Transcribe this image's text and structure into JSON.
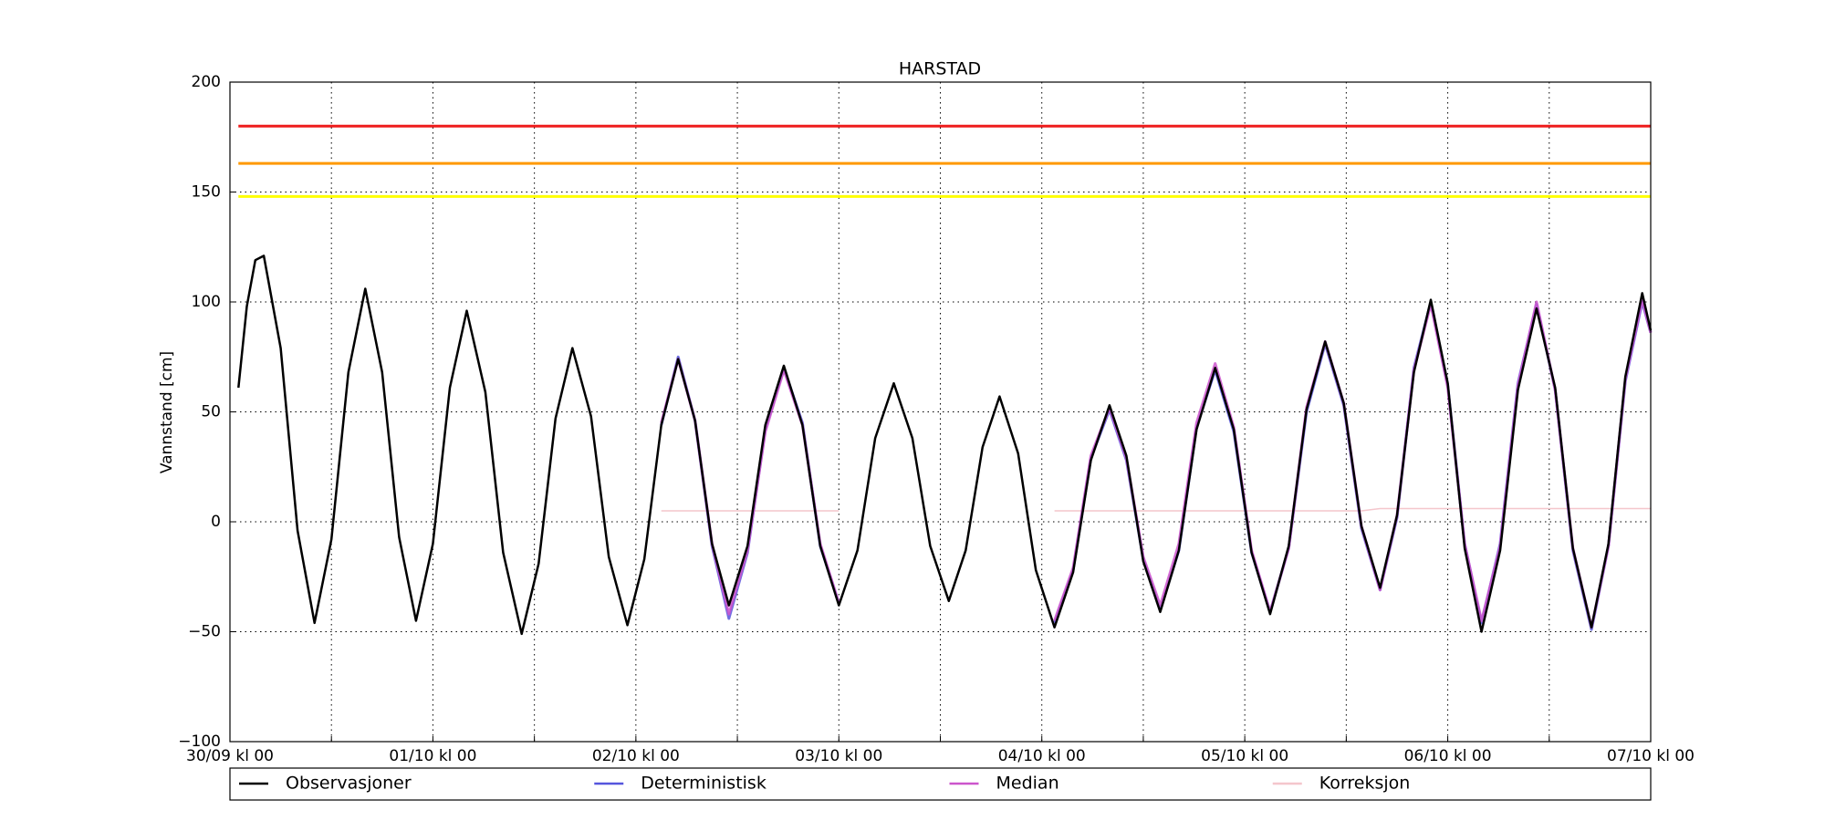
{
  "chart_data": {
    "type": "line",
    "title": "HARSTAD",
    "ylabel": "Vannstand [cm]",
    "x": [
      1,
      2,
      3,
      4,
      6,
      8,
      10,
      12,
      14,
      16,
      18,
      20,
      22,
      24,
      26,
      28,
      30.2,
      32.3,
      34.5,
      36.5,
      38.5,
      40.5,
      42.7,
      44.8,
      47,
      49,
      51,
      53,
      55,
      57,
      59,
      61.2,
      63.3,
      65.5,
      67.7,
      69.8,
      72,
      74.2,
      76.3,
      78.5,
      80.7,
      82.8,
      85,
      87,
      89,
      91,
      93.2,
      95.3,
      97.5,
      99.7,
      101.8,
      104,
      106,
      108,
      110,
      112.2,
      114.3,
      116.5,
      118.7,
      120.8,
      123,
      125.2,
      127.3,
      129.5,
      131.7,
      133.8,
      136,
      138,
      140,
      142,
      144,
      146,
      148,
      150.2,
      152.3,
      154.5,
      156.7,
      158.8,
      161,
      163,
      165,
      167,
      168
    ],
    "series": [
      {
        "name": "Korreksjon",
        "color": "#f4c6cc",
        "width": 1.5,
        "values": [
          null,
          null,
          null,
          null,
          null,
          null,
          null,
          null,
          null,
          null,
          null,
          null,
          null,
          null,
          null,
          null,
          null,
          null,
          null,
          null,
          null,
          null,
          null,
          null,
          null,
          null,
          5,
          5,
          5,
          5,
          5,
          5,
          5,
          5,
          5,
          5,
          5,
          null,
          null,
          null,
          null,
          null,
          null,
          null,
          null,
          null,
          null,
          null,
          5,
          5,
          5,
          5,
          5,
          5,
          5,
          5,
          5,
          5,
          5,
          5,
          5,
          5,
          5,
          5,
          5,
          5,
          6,
          6,
          6,
          6,
          6,
          6,
          6,
          6,
          6,
          6,
          6,
          6,
          6,
          6,
          6,
          6,
          6
        ]
      },
      {
        "name": "Deterministisk",
        "color": "#5555dd",
        "width": 3,
        "values": [
          null,
          null,
          null,
          null,
          null,
          null,
          null,
          null,
          null,
          null,
          null,
          null,
          null,
          null,
          null,
          null,
          null,
          null,
          null,
          null,
          null,
          null,
          null,
          null,
          null,
          null,
          44,
          75,
          46,
          -11,
          -44,
          -14,
          42,
          70,
          45,
          -11,
          -37,
          null,
          null,
          null,
          null,
          null,
          null,
          null,
          null,
          null,
          null,
          null,
          -46,
          -22,
          29,
          51,
          28,
          -17,
          -40,
          -13,
          43,
          69,
          41,
          -14,
          -41,
          -12,
          50,
          81,
          53,
          -3,
          -31,
          2,
          70,
          100,
          62,
          -10,
          -46,
          -10,
          63,
          99,
          60,
          -13,
          -49,
          -11,
          64,
          100,
          86
        ]
      },
      {
        "name": "Median",
        "color": "#cc55cc",
        "width": 3,
        "values": [
          null,
          null,
          null,
          null,
          null,
          null,
          null,
          null,
          null,
          null,
          null,
          null,
          null,
          null,
          null,
          null,
          null,
          null,
          null,
          null,
          null,
          null,
          null,
          null,
          null,
          null,
          45,
          74,
          46,
          -10,
          -42,
          -13,
          41,
          69,
          44,
          -10,
          -37,
          null,
          null,
          null,
          null,
          null,
          null,
          null,
          null,
          null,
          null,
          null,
          -45,
          -21,
          30,
          52,
          29,
          -16,
          -38,
          -10,
          45,
          72,
          43,
          -13,
          -41,
          -12,
          52,
          82,
          54,
          -2,
          -31,
          3,
          69,
          99,
          61,
          -10,
          -45,
          -11,
          62,
          100,
          60,
          -12,
          -48,
          -11,
          65,
          101,
          86
        ]
      },
      {
        "name": "Observasjoner",
        "color": "#000000",
        "width": 2.5,
        "values": [
          61,
          98,
          119,
          121,
          79,
          -4,
          -46,
          -8,
          68,
          106,
          68,
          -7,
          -45,
          -10,
          61,
          96,
          59,
          -14,
          -51,
          -19,
          47,
          79,
          48,
          -16,
          -47,
          -17,
          44,
          74,
          46,
          -10,
          -38,
          -11,
          44,
          71,
          44,
          -11,
          -38,
          -13,
          38,
          63,
          38,
          -11,
          -36,
          -13,
          34,
          57,
          31,
          -22,
          -48,
          -23,
          28,
          53,
          30,
          -18,
          -41,
          -13,
          42,
          70,
          42,
          -14,
          -42,
          -11,
          51,
          82,
          54,
          -2,
          -30,
          3,
          68,
          101,
          63,
          -12,
          -50,
          -13,
          60,
          97,
          61,
          -12,
          -48,
          -10,
          66,
          104,
          87
        ]
      }
    ],
    "legend_order": [
      3,
      1,
      2,
      0
    ],
    "thresholds": [
      {
        "value": 180,
        "color": "#ee1c1c"
      },
      {
        "value": 163,
        "color": "#ff9900"
      },
      {
        "value": 148,
        "color": "#ffff00"
      }
    ],
    "xlim": [
      0,
      168
    ],
    "xticks": [
      {
        "value": 0,
        "label": "30/09 kl 00"
      },
      {
        "value": 24,
        "label": "01/10 kl 00"
      },
      {
        "value": 48,
        "label": "02/10 kl 00"
      },
      {
        "value": 72,
        "label": "03/10 kl 00"
      },
      {
        "value": 96,
        "label": "04/10 kl 00"
      },
      {
        "value": 120,
        "label": "05/10 kl 00"
      },
      {
        "value": 144,
        "label": "06/10 kl 00"
      },
      {
        "value": 168,
        "label": "07/10 kl 00"
      }
    ],
    "xminorticks": [
      12,
      36,
      60,
      84,
      108,
      132,
      156
    ],
    "ylim": [
      -100,
      200
    ],
    "yticks": [
      200,
      150,
      100,
      50,
      0,
      {
        "value": -50,
        "label": "−50"
      },
      {
        "value": -100,
        "label": "−100"
      }
    ],
    "grid": true,
    "legend": "bottom"
  }
}
